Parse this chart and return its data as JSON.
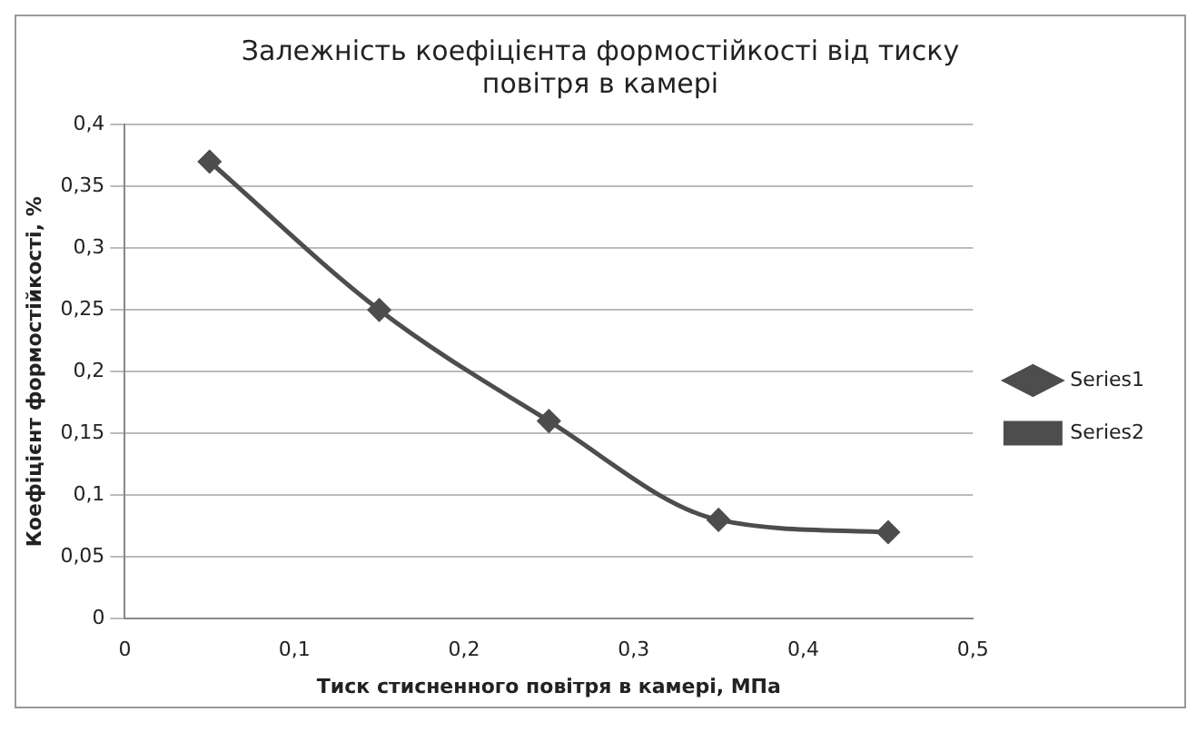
{
  "chart_data": {
    "type": "line",
    "title": "Залежність коефіцієнта формостійкості від тиску повітря в камері",
    "xlabel": "Тиск стисненного повітря в камері, МПа",
    "ylabel": "Коефіцієнт формостійкості, %",
    "x": [
      0.05,
      0.15,
      0.25,
      0.35,
      0.45
    ],
    "series": [
      {
        "name": "Series1",
        "color": "#4d4d4d",
        "values": [
          0.37,
          0.25,
          0.16,
          0.08,
          0.07
        ],
        "marker": "diamond"
      },
      {
        "name": "Series2",
        "color": "#4d4d4d",
        "values": [
          null,
          null,
          null,
          null,
          null
        ],
        "marker": "square"
      }
    ],
    "xlim": [
      0,
      0.5
    ],
    "xticks": [
      0,
      {
        "value": 0.1,
        "label": "0,1"
      },
      {
        "value": 0.2,
        "label": "0,2"
      },
      {
        "value": 0.3,
        "label": "0,3"
      },
      {
        "value": 0.4,
        "label": "0,4"
      },
      {
        "value": 0.5,
        "label": "0,5"
      }
    ],
    "ylim": [
      0,
      0.4
    ],
    "yticks": [
      0,
      {
        "value": 0.05,
        "label": "0,05"
      },
      {
        "value": 0.1,
        "label": "0,1"
      },
      {
        "value": 0.15,
        "label": "0,15"
      },
      {
        "value": 0.2,
        "label": "0,2"
      },
      {
        "value": 0.25,
        "label": "0,25"
      },
      {
        "value": 0.3,
        "label": "0,3"
      },
      {
        "value": 0.35,
        "label": "0,35"
      },
      {
        "value": 0.4,
        "label": "0,4"
      }
    ],
    "grid": "y",
    "legend": "right",
    "line_style": "solid"
  }
}
